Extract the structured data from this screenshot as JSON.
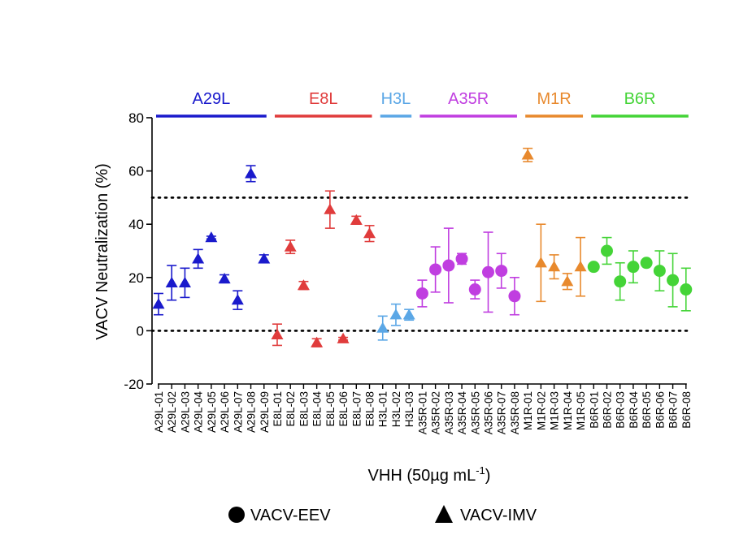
{
  "chart_data": {
    "type": "scatter",
    "title": "",
    "ylabel": "VACV Neutralization (%)",
    "xlabel_main": "VHH (50µg mL",
    "xlabel_sup": "-1",
    "xlabel_close": ")",
    "ylim": [
      -20,
      80
    ],
    "yticks": [
      -20,
      0,
      20,
      40,
      60,
      80
    ],
    "reference_lines": [
      0,
      50
    ],
    "groups": [
      {
        "name": "A29L",
        "color": "#1a1acc",
        "from": "A29L-01",
        "to": "A29L-09"
      },
      {
        "name": "E8L",
        "color": "#e03c3c",
        "from": "E8L-01",
        "to": "E8L-08"
      },
      {
        "name": "H3L",
        "color": "#5ba7e6",
        "from": "H3L-01",
        "to": "H3L-03"
      },
      {
        "name": "A35R",
        "color": "#c03ee0",
        "from": "A35R-01",
        "to": "A35R-08"
      },
      {
        "name": "M1R",
        "color": "#e8892d",
        "from": "M1R-01",
        "to": "M1R-05"
      },
      {
        "name": "B6R",
        "color": "#44d437",
        "from": "B6R-01",
        "to": "B6R-08"
      }
    ],
    "points": [
      {
        "label": "A29L-01",
        "group": "A29L",
        "marker": "triangle",
        "value": 10,
        "err": 4
      },
      {
        "label": "A29L-02",
        "group": "A29L",
        "marker": "triangle",
        "value": 18,
        "err": 6.5
      },
      {
        "label": "A29L-03",
        "group": "A29L",
        "marker": "triangle",
        "value": 18,
        "err": 5.5
      },
      {
        "label": "A29L-04",
        "group": "A29L",
        "marker": "triangle",
        "value": 27,
        "err": 3.5
      },
      {
        "label": "A29L-05",
        "group": "A29L",
        "marker": "triangle",
        "value": 35,
        "err": 0.5
      },
      {
        "label": "A29L-06",
        "group": "A29L",
        "marker": "triangle",
        "value": 19.5,
        "err": 1.5
      },
      {
        "label": "A29L-07",
        "group": "A29L",
        "marker": "triangle",
        "value": 11.5,
        "err": 3.5
      },
      {
        "label": "A29L-08",
        "group": "A29L",
        "marker": "triangle",
        "value": 59,
        "err": 3
      },
      {
        "label": "A29L-09",
        "group": "A29L",
        "marker": "triangle",
        "value": 27,
        "err": 1.5
      },
      {
        "label": "E8L-01",
        "group": "E8L",
        "marker": "triangle",
        "value": -1.5,
        "err": 4
      },
      {
        "label": "E8L-02",
        "group": "E8L",
        "marker": "triangle",
        "value": 31.5,
        "err": 2.5
      },
      {
        "label": "E8L-03",
        "group": "E8L",
        "marker": "triangle",
        "value": 17,
        "err": 1.5
      },
      {
        "label": "E8L-04",
        "group": "E8L",
        "marker": "triangle",
        "value": -4.5,
        "err": 1.5
      },
      {
        "label": "E8L-05",
        "group": "E8L",
        "marker": "triangle",
        "value": 45.5,
        "err": 7
      },
      {
        "label": "E8L-06",
        "group": "E8L",
        "marker": "triangle",
        "value": -3,
        "err": 0.5
      },
      {
        "label": "E8L-07",
        "group": "E8L",
        "marker": "triangle",
        "value": 41.5,
        "err": 1.5
      },
      {
        "label": "E8L-08",
        "group": "E8L",
        "marker": "triangle",
        "value": 36.5,
        "err": 3
      },
      {
        "label": "H3L-01",
        "group": "H3L",
        "marker": "triangle",
        "value": 1,
        "err": 4.5
      },
      {
        "label": "H3L-02",
        "group": "H3L",
        "marker": "triangle",
        "value": 6,
        "err": 4
      },
      {
        "label": "H3L-03",
        "group": "H3L",
        "marker": "triangle",
        "value": 6,
        "err": 2
      },
      {
        "label": "A35R-01",
        "group": "A35R",
        "marker": "circle",
        "value": 14,
        "err": 5
      },
      {
        "label": "A35R-02",
        "group": "A35R",
        "marker": "circle",
        "value": 23,
        "err": 8.5
      },
      {
        "label": "A35R-03",
        "group": "A35R",
        "marker": "circle",
        "value": 24.5,
        "err": 14
      },
      {
        "label": "A35R-04",
        "group": "A35R",
        "marker": "circle",
        "value": 27,
        "err": 2
      },
      {
        "label": "A35R-05",
        "group": "A35R",
        "marker": "circle",
        "value": 15.5,
        "err": 3.5
      },
      {
        "label": "A35R-06",
        "group": "A35R",
        "marker": "circle",
        "value": 22,
        "err": 15
      },
      {
        "label": "A35R-07",
        "group": "A35R",
        "marker": "circle",
        "value": 22.5,
        "err": 6.5
      },
      {
        "label": "A35R-08",
        "group": "A35R",
        "marker": "circle",
        "value": 13,
        "err": 7
      },
      {
        "label": "M1R-01",
        "group": "M1R",
        "marker": "triangle",
        "value": 66,
        "err": 2.5
      },
      {
        "label": "M1R-02",
        "group": "M1R",
        "marker": "triangle",
        "value": 25.5,
        "err": 14.5
      },
      {
        "label": "M1R-03",
        "group": "M1R",
        "marker": "triangle",
        "value": 24,
        "err": 4.5
      },
      {
        "label": "M1R-04",
        "group": "M1R",
        "marker": "triangle",
        "value": 18.5,
        "err": 3
      },
      {
        "label": "M1R-05",
        "group": "M1R",
        "marker": "triangle",
        "value": 24,
        "err": 11
      },
      {
        "label": "B6R-01",
        "group": "B6R",
        "marker": "circle",
        "value": 24,
        "err": 1
      },
      {
        "label": "B6R-02",
        "group": "B6R",
        "marker": "circle",
        "value": 30,
        "err": 5
      },
      {
        "label": "B6R-03",
        "group": "B6R",
        "marker": "circle",
        "value": 18.5,
        "err": 7
      },
      {
        "label": "B6R-04",
        "group": "B6R",
        "marker": "circle",
        "value": 24,
        "err": 6
      },
      {
        "label": "B6R-05",
        "group": "B6R",
        "marker": "circle",
        "value": 25.5,
        "err": 1
      },
      {
        "label": "B6R-06",
        "group": "B6R",
        "marker": "circle",
        "value": 22.5,
        "err": 7.5
      },
      {
        "label": "B6R-07",
        "group": "B6R",
        "marker": "circle",
        "value": 19,
        "err": 10
      },
      {
        "label": "B6R-08",
        "group": "B6R",
        "marker": "circle",
        "value": 15.5,
        "err": 8
      }
    ],
    "legend": [
      {
        "marker": "circle",
        "label": "VACV-EEV"
      },
      {
        "marker": "triangle",
        "label": "VACV-IMV"
      }
    ]
  }
}
